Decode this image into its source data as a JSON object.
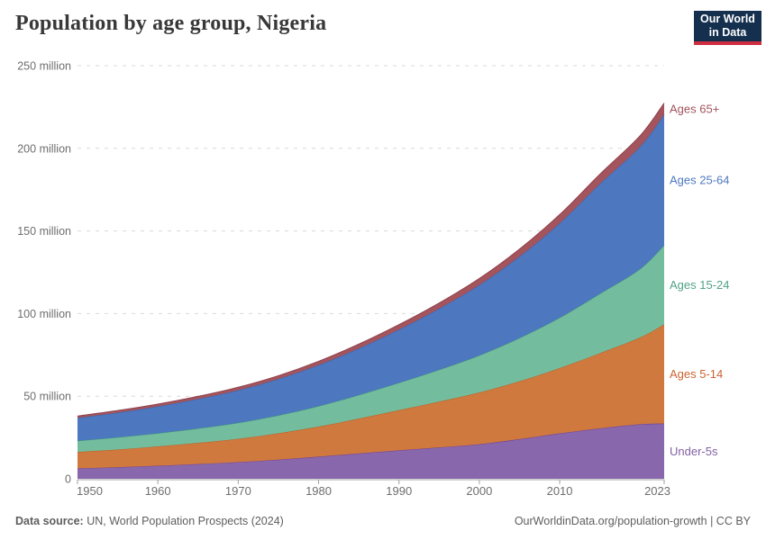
{
  "header": {
    "title": "Population by age group, Nigeria",
    "logo": {
      "line1": "Our World",
      "line2": "in Data",
      "bg_color": "#15304f",
      "accent_color": "#cf2e41"
    }
  },
  "chart_data": {
    "type": "area",
    "stacked": true,
    "title": "Population by age group, Nigeria",
    "xlabel": "",
    "ylabel": "",
    "unit": "million people",
    "xlim": [
      1950,
      2023
    ],
    "ylim": [
      0,
      250
    ],
    "grid": "dashed-horizontal",
    "legend_position": "right-of-plot",
    "x": [
      1950,
      1955,
      1960,
      1965,
      1970,
      1975,
      1980,
      1985,
      1990,
      1995,
      2000,
      2005,
      2010,
      2015,
      2020,
      2023
    ],
    "x_ticks": [
      1950,
      1960,
      1970,
      1980,
      1990,
      2000,
      2010,
      2023
    ],
    "x_tick_labels": [
      "1950",
      "1960",
      "1970",
      "1980",
      "1990",
      "2000",
      "2010",
      "2023"
    ],
    "y_ticks": [
      0,
      50,
      100,
      150,
      200,
      250
    ],
    "y_tick_labels": [
      "0",
      "50 million",
      "100 million",
      "150 million",
      "200 million",
      "250 million"
    ],
    "axis_color": "#a0a0a0",
    "grid_color": "#d9d9d9",
    "tick_label_color": "#6e6e6e",
    "series": [
      {
        "name": "Under-5s",
        "fill": "#8967ad",
        "stroke": "#6d4292",
        "label_color": "#8360a5",
        "values": [
          6.3,
          7.0,
          7.9,
          8.9,
          10.1,
          11.6,
          13.4,
          15.3,
          17.2,
          19.0,
          20.9,
          24.0,
          27.5,
          30.5,
          33.0,
          33.4
        ]
      },
      {
        "name": "Ages 5-14",
        "fill": "#d0793f",
        "stroke": "#bd5c1c",
        "label_color": "#cb6331",
        "values": [
          9.9,
          10.7,
          11.7,
          12.8,
          14.1,
          15.9,
          18.2,
          21.1,
          24.3,
          27.7,
          31.3,
          35.0,
          39.5,
          45.5,
          52.5,
          60.0
        ]
      },
      {
        "name": "Ages 15-24",
        "fill": "#74bc9e",
        "stroke": "#43967c",
        "label_color": "#4fa287",
        "values": [
          6.8,
          7.4,
          8.0,
          8.8,
          9.7,
          10.9,
          12.4,
          14.3,
          16.6,
          19.3,
          22.5,
          26.2,
          30.5,
          36.0,
          41.5,
          48.0
        ]
      },
      {
        "name": "Ages 25-64",
        "fill": "#4d77be",
        "stroke": "#3a67b1",
        "label_color": "#4e79c0",
        "values": [
          13.8,
          14.9,
          16.2,
          17.8,
          19.7,
          22.0,
          24.8,
          28.2,
          32.2,
          37.0,
          42.6,
          49.3,
          57.2,
          66.5,
          74.0,
          79.0
        ]
      },
      {
        "name": "Ages 65+",
        "fill": "#a4545c",
        "stroke": "#8e414d",
        "label_color": "#a0545c",
        "values": [
          1.2,
          1.3,
          1.4,
          1.6,
          1.8,
          2.0,
          2.3,
          2.6,
          3.0,
          3.4,
          3.9,
          4.5,
          5.2,
          5.8,
          6.6,
          7.0
        ]
      }
    ]
  },
  "footer": {
    "source_label": "Data source:",
    "source_text": " UN, World Population Prospects (2024)",
    "credit": "OurWorldinData.org/population-growth | CC BY"
  }
}
